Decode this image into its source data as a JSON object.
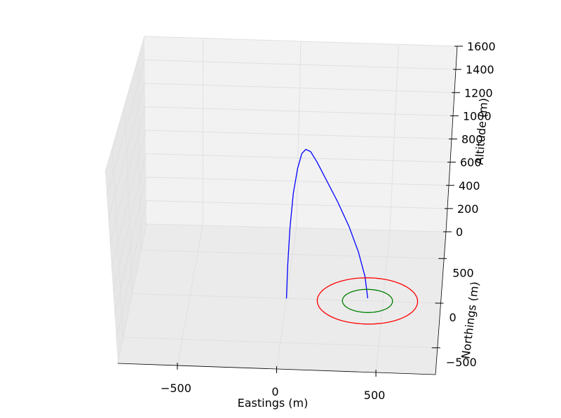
{
  "chart_data": {
    "type": "line3d",
    "xlabel": "Eastings (m)",
    "ylabel": "Northings (m)",
    "zlabel": "Altitude (m)",
    "x_ticks": [
      -500,
      0,
      500
    ],
    "y_ticks": [
      -500,
      0,
      500
    ],
    "z_ticks": [
      0,
      200,
      400,
      600,
      800,
      1000,
      1200,
      1400,
      1600
    ],
    "xlim": [
      -800,
      800
    ],
    "ylim": [
      -800,
      800
    ],
    "zlim": [
      0,
      1600
    ],
    "grid": true,
    "series": [
      {
        "kind": "trajectory",
        "color": "#0000ff",
        "points": [
          {
            "x": 0,
            "y": 0,
            "z": 0
          },
          {
            "x": 5,
            "y": 20,
            "z": 300
          },
          {
            "x": 15,
            "y": 50,
            "z": 650
          },
          {
            "x": 30,
            "y": 90,
            "z": 950
          },
          {
            "x": 50,
            "y": 130,
            "z": 1150
          },
          {
            "x": 70,
            "y": 160,
            "z": 1260
          },
          {
            "x": 90,
            "y": 170,
            "z": 1290
          },
          {
            "x": 115,
            "y": 170,
            "z": 1270
          },
          {
            "x": 150,
            "y": 160,
            "z": 1180
          },
          {
            "x": 200,
            "y": 140,
            "z": 1030
          },
          {
            "x": 260,
            "y": 115,
            "z": 850
          },
          {
            "x": 320,
            "y": 90,
            "z": 640
          },
          {
            "x": 370,
            "y": 65,
            "z": 420
          },
          {
            "x": 405,
            "y": 45,
            "z": 200
          },
          {
            "x": 420,
            "y": 30,
            "z": 0
          }
        ]
      },
      {
        "kind": "ring",
        "color": "#008000",
        "center": {
          "x": 420,
          "y": 0,
          "z": 0
        },
        "radius": 130
      },
      {
        "kind": "ring",
        "color": "#ff0000",
        "center": {
          "x": 420,
          "y": 0,
          "z": 0
        },
        "radius": 260
      }
    ]
  }
}
